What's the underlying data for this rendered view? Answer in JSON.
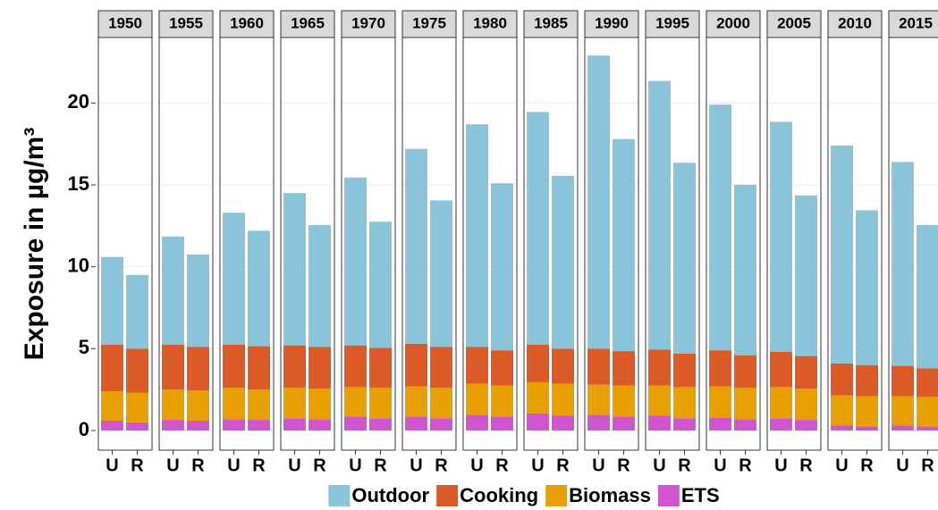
{
  "chart_data": {
    "type": "faceted-stacked-bar",
    "y_label": "Exposure in µg/m³",
    "facets": [
      "1950",
      "1955",
      "1960",
      "1965",
      "1970",
      "1975",
      "1980",
      "1985",
      "1990",
      "1995",
      "2000",
      "2005",
      "2010",
      "2015"
    ],
    "categories": [
      "U",
      "R"
    ],
    "series": [
      {
        "name": "Outdoor",
        "color": "#8ac4da",
        "values": [
          [
            5.35,
            4.5
          ],
          [
            6.6,
            5.65
          ],
          [
            8.05,
            7.05
          ],
          [
            9.3,
            7.45
          ],
          [
            10.25,
            7.7
          ],
          [
            11.9,
            8.95
          ],
          [
            13.6,
            10.2
          ],
          [
            14.2,
            10.55
          ],
          [
            17.9,
            12.95
          ],
          [
            16.4,
            11.65
          ],
          [
            15.0,
            10.4
          ],
          [
            14.05,
            9.8
          ],
          [
            13.3,
            9.45
          ],
          [
            12.45,
            8.75
          ]
        ]
      },
      {
        "name": "Cooking",
        "color": "#dc5a26",
        "values": [
          [
            2.85,
            2.7
          ],
          [
            2.75,
            2.65
          ],
          [
            2.65,
            2.65
          ],
          [
            2.6,
            2.55
          ],
          [
            2.55,
            2.45
          ],
          [
            2.6,
            2.5
          ],
          [
            2.25,
            2.15
          ],
          [
            2.3,
            2.15
          ],
          [
            2.2,
            2.1
          ],
          [
            2.2,
            2.05
          ],
          [
            2.2,
            2.0
          ],
          [
            2.15,
            2.0
          ],
          [
            1.95,
            1.9
          ],
          [
            1.85,
            1.75
          ]
        ]
      },
      {
        "name": "Biomass",
        "color": "#e8a000",
        "values": [
          [
            1.8,
            1.8
          ],
          [
            1.85,
            1.85
          ],
          [
            1.9,
            1.85
          ],
          [
            1.85,
            1.85
          ],
          [
            1.8,
            1.85
          ],
          [
            1.85,
            1.85
          ],
          [
            1.9,
            1.9
          ],
          [
            1.9,
            1.95
          ],
          [
            1.85,
            1.9
          ],
          [
            1.85,
            1.9
          ],
          [
            1.9,
            1.9
          ],
          [
            1.9,
            1.9
          ],
          [
            1.85,
            1.85
          ],
          [
            1.8,
            1.8
          ]
        ]
      },
      {
        "name": "ETS",
        "color": "#d354d0",
        "values": [
          [
            0.6,
            0.5
          ],
          [
            0.65,
            0.6
          ],
          [
            0.7,
            0.65
          ],
          [
            0.75,
            0.7
          ],
          [
            0.85,
            0.75
          ],
          [
            0.85,
            0.75
          ],
          [
            0.95,
            0.85
          ],
          [
            1.05,
            0.9
          ],
          [
            0.95,
            0.85
          ],
          [
            0.9,
            0.75
          ],
          [
            0.8,
            0.7
          ],
          [
            0.75,
            0.65
          ],
          [
            0.3,
            0.25
          ],
          [
            0.3,
            0.25
          ]
        ]
      }
    ],
    "ylim": [
      -1.2,
      24
    ],
    "yticks": [
      0,
      5,
      10,
      15,
      20
    ],
    "grid": true,
    "legend": "bottom"
  }
}
